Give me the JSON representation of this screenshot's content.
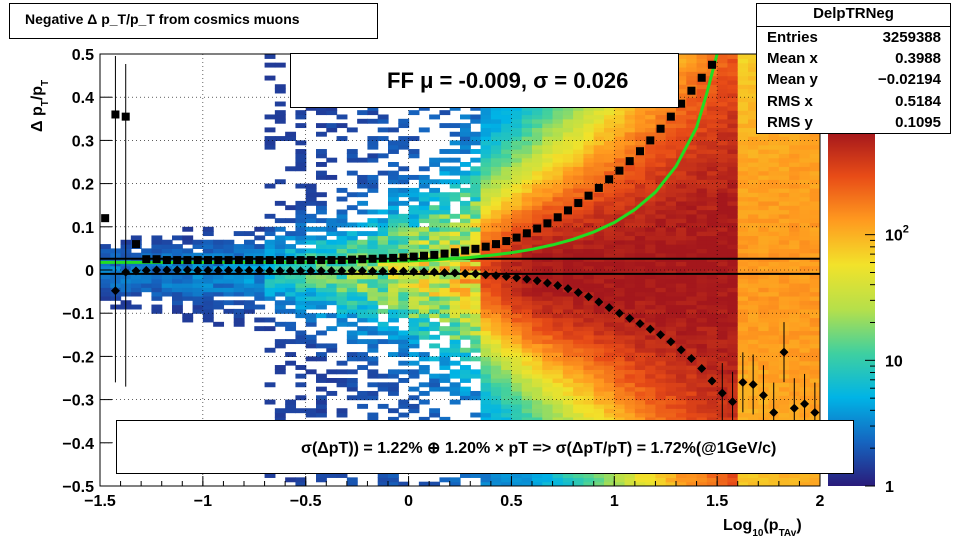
{
  "title": "Negative Δ p_T/p_T from cosmics muons",
  "stats": {
    "name": "DelpTRNeg",
    "rows": [
      {
        "label": "Entries",
        "value": "3259388"
      },
      {
        "label": "Mean x",
        "value": "0.3988"
      },
      {
        "label": "Mean y",
        "value": "−0.02194"
      },
      {
        "label": "RMS x",
        "value": "0.5184"
      },
      {
        "label": "RMS y",
        "value": "0.1095"
      }
    ]
  },
  "fit_legend": "FF μ = -0.009, σ =   0.026",
  "resolution_legend": "σ(ΔpT)) =  1.22% ⊕  1.20% × pT => σ(ΔpT/pT) =  1.72%(@1GeV/c)",
  "colors": {
    "fit_curve": "#22dd22",
    "markers": "#000000",
    "palette": [
      "#2a1b7a",
      "#1565c0",
      "#00b4e6",
      "#3fd0a0",
      "#b6e04a",
      "#f2e22a",
      "#ff9a1f",
      "#e84c17",
      "#a4171c"
    ]
  },
  "chart_data": {
    "type": "heatmap",
    "title": "Negative Δ p_T/p_T from cosmics muons",
    "xlabel": "Log10(pTAv)",
    "ylabel": "Δ pT/pT",
    "xlim": [
      -1.5,
      2
    ],
    "ylim": [
      -0.5,
      0.5
    ],
    "x_ticks": [
      -1.5,
      -1,
      -0.5,
      0,
      0.5,
      1,
      1.5,
      2
    ],
    "x_tick_labels": [
      "−1.5",
      "−1",
      "−0.5",
      "0",
      "0.5",
      "1",
      "1.5",
      "2"
    ],
    "y_ticks": [
      -0.5,
      -0.4,
      -0.3,
      -0.2,
      -0.1,
      0,
      0.1,
      0.2,
      0.3,
      0.4,
      0.5
    ],
    "y_tick_labels": [
      "−0.5",
      "−0.4",
      "−0.3",
      "−0.2",
      "−0.1",
      "0",
      "0.1",
      "0.2",
      "0.3",
      "0.4",
      "0.5"
    ],
    "z_scale": "log",
    "z_tick_labels": [
      "1",
      "10",
      "10^2"
    ],
    "grid": true,
    "reference_lines_y": [
      0.026,
      -0.009
    ],
    "mean_markers": {
      "x": [
        -1.475,
        -1.425,
        -1.375,
        -1.325,
        -1.275,
        -1.225,
        -1.175,
        -1.125,
        -1.075,
        -1.025,
        -0.975,
        -0.925,
        -0.875,
        -0.825,
        -0.775,
        -0.725,
        -0.675,
        -0.625,
        -0.575,
        -0.525,
        -0.475,
        -0.425,
        -0.375,
        -0.325,
        -0.275,
        -0.225,
        -0.175,
        -0.125,
        -0.075,
        -0.025,
        0.025,
        0.075,
        0.125,
        0.175,
        0.225,
        0.275,
        0.325,
        0.375,
        0.425,
        0.475,
        0.525,
        0.575,
        0.625,
        0.675,
        0.725,
        0.775,
        0.825,
        0.875,
        0.925,
        0.975,
        1.025,
        1.075,
        1.125,
        1.175,
        1.225,
        1.275,
        1.325,
        1.375,
        1.425,
        1.475,
        1.525,
        1.575,
        1.625,
        1.675,
        1.725,
        1.775,
        1.825,
        1.875,
        1.925,
        1.975
      ],
      "y": [
        0.12,
        0.36,
        0.355,
        0.06,
        0.025,
        0.025,
        0.023,
        0.023,
        0.023,
        0.023,
        0.023,
        0.023,
        0.023,
        0.023,
        0.023,
        0.023,
        0.023,
        0.023,
        0.023,
        0.023,
        0.023,
        0.023,
        0.023,
        0.023,
        0.024,
        0.025,
        0.026,
        0.027,
        0.028,
        0.029,
        0.031,
        0.033,
        0.035,
        0.038,
        0.041,
        0.045,
        0.049,
        0.054,
        0.06,
        0.067,
        0.075,
        0.085,
        0.096,
        0.108,
        0.122,
        0.138,
        0.155,
        0.172,
        0.19,
        0.21,
        0.23,
        0.252,
        0.275,
        0.3,
        0.327,
        0.355,
        0.385,
        0.415,
        0.445,
        0.475,
        null,
        null,
        null,
        null,
        null,
        null,
        null,
        null,
        null,
        null
      ]
    },
    "sigma_markers": {
      "x": [
        -1.425,
        -1.375,
        -1.325,
        -1.275,
        -1.225,
        -1.175,
        -1.125,
        -1.075,
        -1.025,
        -0.975,
        -0.925,
        -0.875,
        -0.825,
        -0.775,
        -0.725,
        -0.675,
        -0.625,
        -0.575,
        -0.525,
        -0.475,
        -0.425,
        -0.375,
        -0.325,
        -0.275,
        -0.225,
        -0.175,
        -0.125,
        -0.075,
        -0.025,
        0.025,
        0.075,
        0.125,
        0.175,
        0.225,
        0.275,
        0.325,
        0.375,
        0.425,
        0.475,
        0.525,
        0.575,
        0.625,
        0.675,
        0.725,
        0.775,
        0.825,
        0.875,
        0.925,
        0.975,
        1.025,
        1.075,
        1.125,
        1.175,
        1.225,
        1.275,
        1.325,
        1.375,
        1.425,
        1.475,
        1.525,
        1.575,
        1.625,
        1.675,
        1.725,
        1.775,
        1.825,
        1.875,
        1.925,
        1.975
      ],
      "y": [
        -0.048,
        -0.005,
        -0.002,
        -0.001,
        0.0,
        0.0,
        0.0,
        0.0,
        -0.001,
        -0.001,
        -0.001,
        -0.001,
        -0.001,
        -0.001,
        -0.001,
        -0.002,
        -0.002,
        -0.002,
        -0.002,
        -0.002,
        -0.002,
        -0.002,
        -0.002,
        -0.002,
        -0.002,
        -0.003,
        -0.003,
        -0.003,
        -0.003,
        -0.004,
        -0.004,
        -0.005,
        -0.006,
        -0.007,
        -0.008,
        -0.009,
        -0.011,
        -0.013,
        -0.015,
        -0.018,
        -0.021,
        -0.025,
        -0.03,
        -0.036,
        -0.043,
        -0.052,
        -0.062,
        -0.074,
        -0.087,
        -0.1,
        -0.112,
        -0.124,
        -0.137,
        -0.15,
        -0.166,
        -0.185,
        -0.205,
        -0.228,
        -0.257,
        -0.285,
        -0.305,
        -0.26,
        -0.265,
        -0.29,
        -0.33,
        -0.19,
        -0.32,
        -0.31,
        -0.33
      ]
    },
    "fit_curve": {
      "name": "FF",
      "x": [
        -1.5,
        -1.25,
        -1.0,
        -0.75,
        -0.5,
        -0.25,
        0.0,
        0.1,
        0.2,
        0.3,
        0.4,
        0.5,
        0.6,
        0.7,
        0.8,
        0.9,
        1.0,
        1.1,
        1.2,
        1.3,
        1.4,
        1.45,
        1.5
      ],
      "y": [
        0.0175,
        0.0175,
        0.0176,
        0.0178,
        0.018,
        0.019,
        0.021,
        0.023,
        0.026,
        0.029,
        0.034,
        0.04,
        0.048,
        0.058,
        0.071,
        0.088,
        0.11,
        0.14,
        0.18,
        0.24,
        0.33,
        0.41,
        0.5
      ]
    }
  },
  "resolution": {
    "constant_pct": 1.22,
    "slope_pct": 1.2,
    "at_1GeV_pct": 1.72
  }
}
